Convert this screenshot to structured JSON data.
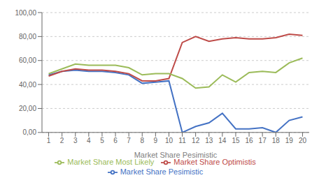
{
  "chart_data": {
    "type": "line",
    "xlabel": "Market Share Pesimistic",
    "x": [
      1,
      2,
      3,
      4,
      5,
      6,
      7,
      8,
      9,
      10,
      11,
      12,
      13,
      14,
      15,
      16,
      17,
      18,
      19,
      20
    ],
    "series": [
      {
        "name": "Market Share Pesimistic",
        "color": "#4472c4",
        "values": [
          48,
          51,
          52,
          51,
          51,
          50,
          48,
          41,
          42,
          43,
          0,
          5,
          8,
          16,
          3,
          3,
          4,
          0,
          10,
          13
        ]
      },
      {
        "name": "Market Share Optimistis",
        "color": "#be4b48",
        "values": [
          47,
          51,
          53,
          52,
          52,
          51,
          49,
          43,
          43,
          45,
          75,
          80,
          76,
          78,
          79,
          78,
          78,
          79,
          82,
          81
        ]
      },
      {
        "name": "Market Share Most Likely",
        "color": "#9bbb59",
        "values": [
          49,
          53,
          57,
          56,
          56,
          56,
          54,
          48,
          49,
          49,
          45,
          37,
          38,
          48,
          42,
          50,
          51,
          50,
          58,
          62
        ]
      }
    ],
    "xlim": [
      0.5,
      20.5
    ],
    "xticks": [
      1,
      2,
      3,
      4,
      5,
      6,
      7,
      8,
      9,
      10,
      11,
      12,
      13,
      14,
      15,
      16,
      17,
      18,
      19,
      20
    ],
    "ylim": [
      0,
      100
    ],
    "yticks": [
      {
        "value": 0,
        "label": "0,00"
      },
      {
        "value": 20,
        "label": "20,00"
      },
      {
        "value": 40,
        "label": "40,00"
      },
      {
        "value": 60,
        "label": "60,00"
      },
      {
        "value": 80,
        "label": "80,00"
      },
      {
        "value": 100,
        "label": "100,00"
      }
    ],
    "grid": true,
    "legend": "bottom"
  }
}
